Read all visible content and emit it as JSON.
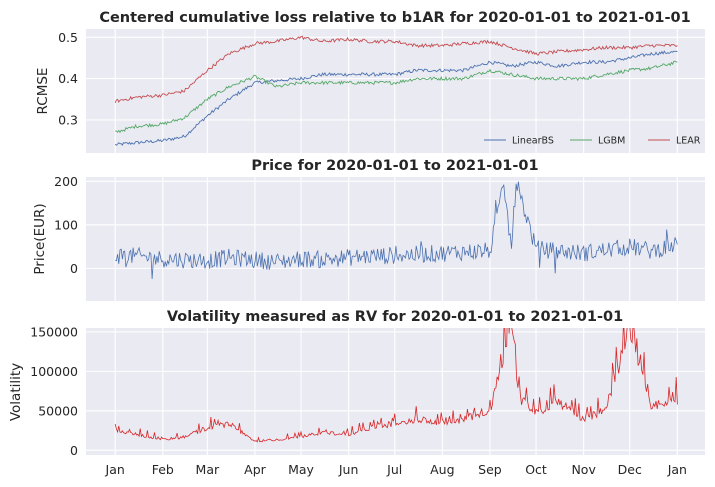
{
  "chart_data": [
    {
      "type": "line",
      "title": "Centered cumulative loss relative to b1AR for 2020-01-01 to 2021-01-01",
      "ylabel": "RCMSE",
      "ylim": [
        0.22,
        0.52
      ],
      "yticks": [
        0.3,
        0.4,
        0.5
      ],
      "ytick_labels": [
        "0.3",
        "0.4",
        "0.5"
      ],
      "legend_position": "lower-right",
      "x_dates": [
        "2020-01-01",
        "2020-01-15",
        "2020-02-01",
        "2020-02-15",
        "2020-03-01",
        "2020-03-15",
        "2020-04-01",
        "2020-04-15",
        "2020-05-01",
        "2020-05-15",
        "2020-06-01",
        "2020-06-15",
        "2020-07-01",
        "2020-07-15",
        "2020-08-01",
        "2020-08-15",
        "2020-09-01",
        "2020-09-15",
        "2020-10-01",
        "2020-10-15",
        "2020-11-01",
        "2020-11-15",
        "2020-12-01",
        "2020-12-15",
        "2021-01-01"
      ],
      "series": [
        {
          "name": "LinearBS",
          "color": "#4c72b0",
          "values": [
            0.24,
            0.245,
            0.25,
            0.26,
            0.31,
            0.35,
            0.39,
            0.395,
            0.4,
            0.41,
            0.41,
            0.41,
            0.41,
            0.42,
            0.42,
            0.42,
            0.44,
            0.43,
            0.44,
            0.43,
            0.44,
            0.44,
            0.45,
            0.46,
            0.465
          ]
        },
        {
          "name": "LGBM",
          "color": "#55a868",
          "values": [
            0.27,
            0.285,
            0.29,
            0.305,
            0.35,
            0.38,
            0.405,
            0.38,
            0.39,
            0.39,
            0.39,
            0.39,
            0.39,
            0.4,
            0.4,
            0.4,
            0.42,
            0.41,
            0.4,
            0.4,
            0.4,
            0.41,
            0.42,
            0.425,
            0.44
          ]
        },
        {
          "name": "LEAR",
          "color": "#c44e52",
          "values": [
            0.345,
            0.355,
            0.36,
            0.37,
            0.42,
            0.46,
            0.485,
            0.49,
            0.5,
            0.49,
            0.495,
            0.49,
            0.49,
            0.48,
            0.48,
            0.485,
            0.49,
            0.475,
            0.46,
            0.465,
            0.47,
            0.475,
            0.475,
            0.48,
            0.48
          ]
        }
      ]
    },
    {
      "type": "line",
      "title": "Price for 2020-01-01 to 2021-01-01",
      "ylabel": "Price(EUR)",
      "ylim": [
        -75,
        210
      ],
      "yticks": [
        0,
        100,
        200
      ],
      "ytick_labels": [
        "0",
        "100",
        "200"
      ],
      "x_dates": [
        "2020-01-01",
        "2020-01-15",
        "2020-02-01",
        "2020-02-15",
        "2020-03-01",
        "2020-03-15",
        "2020-04-01",
        "2020-04-15",
        "2020-05-01",
        "2020-05-15",
        "2020-06-01",
        "2020-06-15",
        "2020-07-01",
        "2020-07-15",
        "2020-08-01",
        "2020-08-15",
        "2020-09-01",
        "2020-09-10",
        "2020-09-15",
        "2020-09-18",
        "2020-10-01",
        "2020-10-15",
        "2020-11-01",
        "2020-11-15",
        "2020-12-01",
        "2020-12-15",
        "2021-01-01"
      ],
      "series": [
        {
          "name": "",
          "color": "#4c72b0",
          "values": [
            30,
            28,
            22,
            20,
            18,
            25,
            20,
            15,
            22,
            20,
            25,
            28,
            30,
            32,
            35,
            38,
            40,
            190,
            45,
            200,
            45,
            40,
            35,
            42,
            50,
            40,
            55
          ]
        }
      ]
    },
    {
      "type": "line",
      "title": "Volatility measured as RV for 2020-01-01 to 2021-01-01",
      "ylabel": "Volatility",
      "ylim": [
        -6000,
        155000
      ],
      "yticks": [
        0,
        50000,
        100000,
        150000
      ],
      "ytick_labels": [
        "0",
        "50000",
        "100000",
        "150000"
      ],
      "x_dates": [
        "2020-01-01",
        "2020-01-15",
        "2020-02-01",
        "2020-02-15",
        "2020-03-01",
        "2020-03-15",
        "2020-04-01",
        "2020-04-15",
        "2020-05-01",
        "2020-05-15",
        "2020-06-01",
        "2020-06-15",
        "2020-07-01",
        "2020-07-15",
        "2020-08-01",
        "2020-08-15",
        "2020-09-01",
        "2020-09-15",
        "2020-09-20",
        "2020-10-01",
        "2020-10-15",
        "2020-11-01",
        "2020-11-15",
        "2020-12-01",
        "2020-12-15",
        "2021-01-01"
      ],
      "series": [
        {
          "name": "",
          "color": "#d62728",
          "values": [
            22000,
            18000,
            12000,
            15000,
            25000,
            30000,
            10000,
            12000,
            15000,
            20000,
            18000,
            25000,
            30000,
            35000,
            30000,
            35000,
            45000,
            150000,
            60000,
            40000,
            55000,
            35000,
            45000,
            138000,
            50000,
            58000
          ]
        }
      ]
    }
  ],
  "x_axis": {
    "tick_labels": [
      "Jan",
      "Feb",
      "Mar",
      "Apr",
      "May",
      "Jun",
      "Jul",
      "Aug",
      "Sep",
      "Oct",
      "Nov",
      "Dec",
      "Jan"
    ],
    "tick_dates": [
      "2020-01-01",
      "2020-02-01",
      "2020-03-01",
      "2020-04-01",
      "2020-05-01",
      "2020-06-01",
      "2020-07-01",
      "2020-08-01",
      "2020-09-01",
      "2020-10-01",
      "2020-11-01",
      "2020-12-01",
      "2021-01-01"
    ],
    "range": [
      "2019-12-13",
      "2021-01-19"
    ]
  }
}
